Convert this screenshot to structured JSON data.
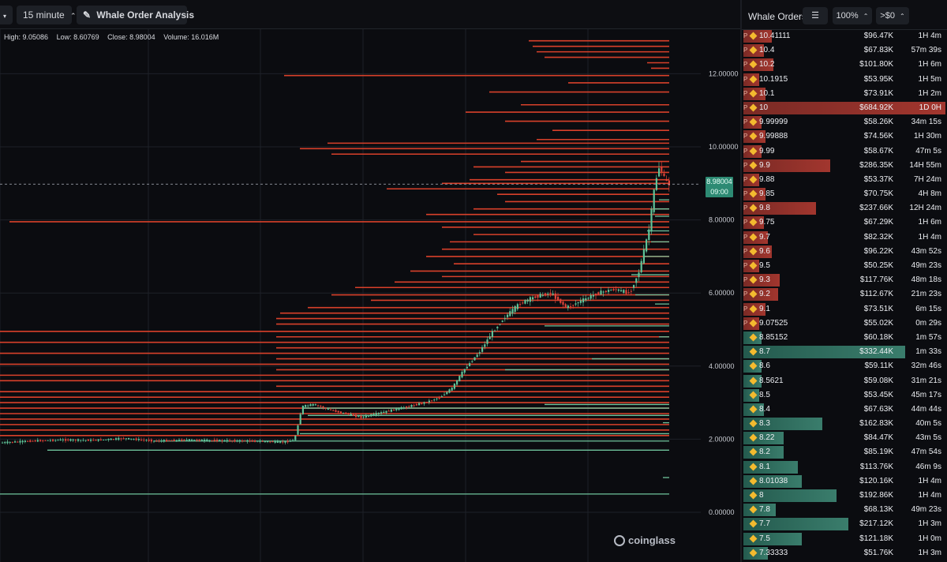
{
  "toolbar": {
    "interval_label": "15 minute",
    "analysis_label": "Whale Order Analysis"
  },
  "ohlc": {
    "high": "High: 9.05086",
    "low": "Low: 8.60769",
    "close": "Close: 8.98004",
    "volume": "Volume: 16.016M"
  },
  "price_tag": {
    "price": "8.98004",
    "countdown": "09:00"
  },
  "brand": "coinglass",
  "colors": {
    "sell": "#d8402a",
    "buy": "#6fc39c",
    "candle_up": "#5fc398",
    "candle_down": "#e0443a",
    "accent": "#2d8a73"
  },
  "chart_data": {
    "type": "candlestick",
    "y_axis": {
      "min": 0,
      "max": 12,
      "ticks": [
        "0.00000",
        "2.00000",
        "4.00000",
        "6.00000",
        "8.00000",
        "10.00000",
        "12.00000"
      ]
    },
    "grid": true,
    "last_price": 8.98004,
    "price_path": [
      [
        0,
        1.9
      ],
      [
        40,
        1.95
      ],
      [
        80,
        1.98
      ],
      [
        120,
        1.97
      ],
      [
        160,
        2.02
      ],
      [
        200,
        1.95
      ],
      [
        240,
        1.98
      ],
      [
        280,
        1.96
      ],
      [
        320,
        1.95
      ],
      [
        360,
        1.92
      ],
      [
        375,
        1.97
      ],
      [
        385,
        2.9
      ],
      [
        400,
        2.95
      ],
      [
        420,
        2.8
      ],
      [
        440,
        2.7
      ],
      [
        460,
        2.6
      ],
      [
        480,
        2.7
      ],
      [
        500,
        2.8
      ],
      [
        520,
        2.9
      ],
      [
        540,
        3.0
      ],
      [
        560,
        3.15
      ],
      [
        575,
        3.4
      ],
      [
        590,
        3.9
      ],
      [
        610,
        4.4
      ],
      [
        625,
        4.9
      ],
      [
        640,
        5.3
      ],
      [
        660,
        5.7
      ],
      [
        680,
        5.9
      ],
      [
        700,
        6.0
      ],
      [
        720,
        5.6
      ],
      [
        740,
        5.8
      ],
      [
        760,
        6.0
      ],
      [
        780,
        6.1
      ],
      [
        800,
        6.0
      ],
      [
        812,
        6.6
      ],
      [
        825,
        7.8
      ],
      [
        832,
        9.0
      ],
      [
        838,
        9.5
      ],
      [
        844,
        9.1
      ],
      [
        850,
        8.98
      ]
    ],
    "sell_orders": [
      {
        "price": 12.9,
        "start": 670
      },
      {
        "price": 12.75,
        "start": 675
      },
      {
        "price": 12.6,
        "start": 680
      },
      {
        "price": 12.45,
        "start": 690
      },
      {
        "price": 12.3,
        "start": 820
      },
      {
        "price": 12.15,
        "start": 825
      },
      {
        "price": 11.95,
        "start": 360
      },
      {
        "price": 11.75,
        "start": 720
      },
      {
        "price": 11.5,
        "start": 620
      },
      {
        "price": 11.15,
        "start": 660
      },
      {
        "price": 10.95,
        "start": 590
      },
      {
        "price": 10.7,
        "start": 640
      },
      {
        "price": 10.45,
        "start": 700
      },
      {
        "price": 10.2,
        "start": 680
      },
      {
        "price": 10.1,
        "start": 415
      },
      {
        "price": 9.95,
        "start": 380
      },
      {
        "price": 9.8,
        "start": 420
      },
      {
        "price": 9.6,
        "start": 660
      },
      {
        "price": 9.45,
        "start": 600
      },
      {
        "price": 9.3,
        "start": 640
      },
      {
        "price": 9.1,
        "start": 595
      },
      {
        "price": 9.0,
        "start": 560
      },
      {
        "price": 8.85,
        "start": 490
      },
      {
        "price": 8.7,
        "start": 630
      },
      {
        "price": 8.5,
        "start": 640
      },
      {
        "price": 8.3,
        "start": 600
      },
      {
        "price": 8.15,
        "start": 540
      },
      {
        "price": 7.95,
        "start": 12
      },
      {
        "price": 7.8,
        "start": 560
      },
      {
        "price": 7.6,
        "start": 600
      },
      {
        "price": 7.4,
        "start": 570
      },
      {
        "price": 7.2,
        "start": 560
      },
      {
        "price": 7.0,
        "start": 540
      },
      {
        "price": 6.8,
        "start": 575
      },
      {
        "price": 6.6,
        "start": 520
      },
      {
        "price": 6.45,
        "start": 560
      },
      {
        "price": 6.3,
        "start": 500
      },
      {
        "price": 6.15,
        "start": 450
      },
      {
        "price": 5.95,
        "start": 420
      },
      {
        "price": 5.8,
        "start": 470
      },
      {
        "price": 5.6,
        "start": 390
      },
      {
        "price": 5.45,
        "start": 355
      },
      {
        "price": 5.3,
        "start": 350
      },
      {
        "price": 5.15,
        "start": 350
      },
      {
        "price": 4.95,
        "start": 0
      },
      {
        "price": 4.8,
        "start": 350
      },
      {
        "price": 4.65,
        "start": 0
      },
      {
        "price": 4.5,
        "start": 350
      },
      {
        "price": 4.35,
        "start": 0
      },
      {
        "price": 4.2,
        "start": 350
      },
      {
        "price": 4.05,
        "start": 0
      },
      {
        "price": 3.9,
        "start": 350
      },
      {
        "price": 3.75,
        "start": 0
      },
      {
        "price": 3.6,
        "start": 0
      },
      {
        "price": 3.45,
        "start": 350
      },
      {
        "price": 3.3,
        "start": 0
      },
      {
        "price": 3.15,
        "start": 0
      },
      {
        "price": 3.0,
        "start": 0
      },
      {
        "price": 2.85,
        "start": 0
      },
      {
        "price": 2.7,
        "start": 0
      },
      {
        "price": 2.55,
        "start": 0
      },
      {
        "price": 2.4,
        "start": 0
      },
      {
        "price": 2.25,
        "start": 0
      },
      {
        "price": 2.1,
        "start": 0
      }
    ],
    "buy_orders": [
      {
        "price": 8.55,
        "start": 835
      },
      {
        "price": 8.3,
        "start": 830
      },
      {
        "price": 8.1,
        "start": 830
      },
      {
        "price": 7.7,
        "start": 820
      },
      {
        "price": 7.4,
        "start": 825
      },
      {
        "price": 7.0,
        "start": 815
      },
      {
        "price": 6.5,
        "start": 800
      },
      {
        "price": 5.95,
        "start": 805
      },
      {
        "price": 5.7,
        "start": 830
      },
      {
        "price": 5.1,
        "start": 690
      },
      {
        "price": 4.8,
        "start": 835
      },
      {
        "price": 4.2,
        "start": 750
      },
      {
        "price": 3.9,
        "start": 640
      },
      {
        "price": 2.95,
        "start": 690
      },
      {
        "price": 2.85,
        "start": 385
      },
      {
        "price": 2.65,
        "start": 390
      },
      {
        "price": 2.45,
        "start": 840
      },
      {
        "price": 2.15,
        "start": 380
      },
      {
        "price": 1.95,
        "start": 195
      },
      {
        "price": 1.7,
        "start": 60
      },
      {
        "price": 0.95,
        "start": 840
      },
      {
        "price": 0.5,
        "start": 0
      }
    ]
  },
  "panel": {
    "title": "Whale Orders",
    "zoom": "100%",
    "filter": ">$0",
    "side_tag": "P",
    "rows": [
      {
        "side": "sell",
        "price": "10.41111",
        "amount": "$96.47K",
        "age": "1H 4m",
        "fill": 0.14
      },
      {
        "side": "sell",
        "price": "10.4",
        "amount": "$67.83K",
        "age": "57m 39s",
        "fill": 0.1
      },
      {
        "side": "sell",
        "price": "10.2",
        "amount": "$101.80K",
        "age": "1H 6m",
        "fill": 0.15
      },
      {
        "side": "sell",
        "price": "10.1915",
        "amount": "$53.95K",
        "age": "1H 5m",
        "fill": 0.08
      },
      {
        "side": "sell",
        "price": "10.1",
        "amount": "$73.91K",
        "age": "1H 2m",
        "fill": 0.11
      },
      {
        "side": "sell",
        "price": "10",
        "amount": "$684.92K",
        "age": "1D 0H",
        "fill": 1.0
      },
      {
        "side": "sell",
        "price": "9.99999",
        "amount": "$58.26K",
        "age": "34m 15s",
        "fill": 0.09
      },
      {
        "side": "sell",
        "price": "9.99888",
        "amount": "$74.56K",
        "age": "1H 30m",
        "fill": 0.11
      },
      {
        "side": "sell",
        "price": "9.99",
        "amount": "$58.67K",
        "age": "47m 5s",
        "fill": 0.09
      },
      {
        "side": "sell",
        "price": "9.9",
        "amount": "$286.35K",
        "age": "14H 55m",
        "fill": 0.43
      },
      {
        "side": "sell",
        "price": "9.88",
        "amount": "$53.37K",
        "age": "7H 24m",
        "fill": 0.08
      },
      {
        "side": "sell",
        "price": "9.85",
        "amount": "$70.75K",
        "age": "4H 8m",
        "fill": 0.11
      },
      {
        "side": "sell",
        "price": "9.8",
        "amount": "$237.66K",
        "age": "12H 24m",
        "fill": 0.36
      },
      {
        "side": "sell",
        "price": "9.75",
        "amount": "$67.29K",
        "age": "1H 6m",
        "fill": 0.1
      },
      {
        "side": "sell",
        "price": "9.7",
        "amount": "$82.32K",
        "age": "1H 4m",
        "fill": 0.12
      },
      {
        "side": "sell",
        "price": "9.6",
        "amount": "$96.22K",
        "age": "43m 52s",
        "fill": 0.14
      },
      {
        "side": "sell",
        "price": "9.5",
        "amount": "$50.25K",
        "age": "49m 23s",
        "fill": 0.08
      },
      {
        "side": "sell",
        "price": "9.3",
        "amount": "$117.76K",
        "age": "48m 18s",
        "fill": 0.18
      },
      {
        "side": "sell",
        "price": "9.2",
        "amount": "$112.67K",
        "age": "21m 23s",
        "fill": 0.17
      },
      {
        "side": "sell",
        "price": "9.1",
        "amount": "$73.51K",
        "age": "6m 15s",
        "fill": 0.11
      },
      {
        "side": "sell",
        "price": "9.07525",
        "amount": "$55.02K",
        "age": "0m 29s",
        "fill": 0.08
      },
      {
        "side": "buy",
        "price": "8.85152",
        "amount": "$60.18K",
        "age": "1m 57s",
        "fill": 0.09
      },
      {
        "side": "buy",
        "price": "8.7",
        "amount": "$332.44K",
        "age": "1m 33s",
        "fill": 0.8
      },
      {
        "side": "buy",
        "price": "8.6",
        "amount": "$59.11K",
        "age": "32m 46s",
        "fill": 0.09
      },
      {
        "side": "buy",
        "price": "8.5621",
        "amount": "$59.08K",
        "age": "31m 21s",
        "fill": 0.09
      },
      {
        "side": "buy",
        "price": "8.5",
        "amount": "$53.45K",
        "age": "45m 17s",
        "fill": 0.08
      },
      {
        "side": "buy",
        "price": "8.4",
        "amount": "$67.63K",
        "age": "44m 44s",
        "fill": 0.1
      },
      {
        "side": "buy",
        "price": "8.3",
        "amount": "$162.83K",
        "age": "40m 5s",
        "fill": 0.39
      },
      {
        "side": "buy",
        "price": "8.22",
        "amount": "$84.47K",
        "age": "43m 5s",
        "fill": 0.2
      },
      {
        "side": "buy",
        "price": "8.2",
        "amount": "$85.19K",
        "age": "47m 54s",
        "fill": 0.2
      },
      {
        "side": "buy",
        "price": "8.1",
        "amount": "$113.76K",
        "age": "46m 9s",
        "fill": 0.27
      },
      {
        "side": "buy",
        "price": "8.01038",
        "amount": "$120.16K",
        "age": "1H 4m",
        "fill": 0.29
      },
      {
        "side": "buy",
        "price": "8",
        "amount": "$192.86K",
        "age": "1H 4m",
        "fill": 0.46
      },
      {
        "side": "buy",
        "price": "7.8",
        "amount": "$68.13K",
        "age": "49m 23s",
        "fill": 0.16
      },
      {
        "side": "buy",
        "price": "7.7",
        "amount": "$217.12K",
        "age": "1H 3m",
        "fill": 0.52
      },
      {
        "side": "buy",
        "price": "7.5",
        "amount": "$121.18K",
        "age": "1H 0m",
        "fill": 0.29
      },
      {
        "side": "buy",
        "price": "7.33333",
        "amount": "$51.76K",
        "age": "1H 3m",
        "fill": 0.12
      }
    ]
  }
}
